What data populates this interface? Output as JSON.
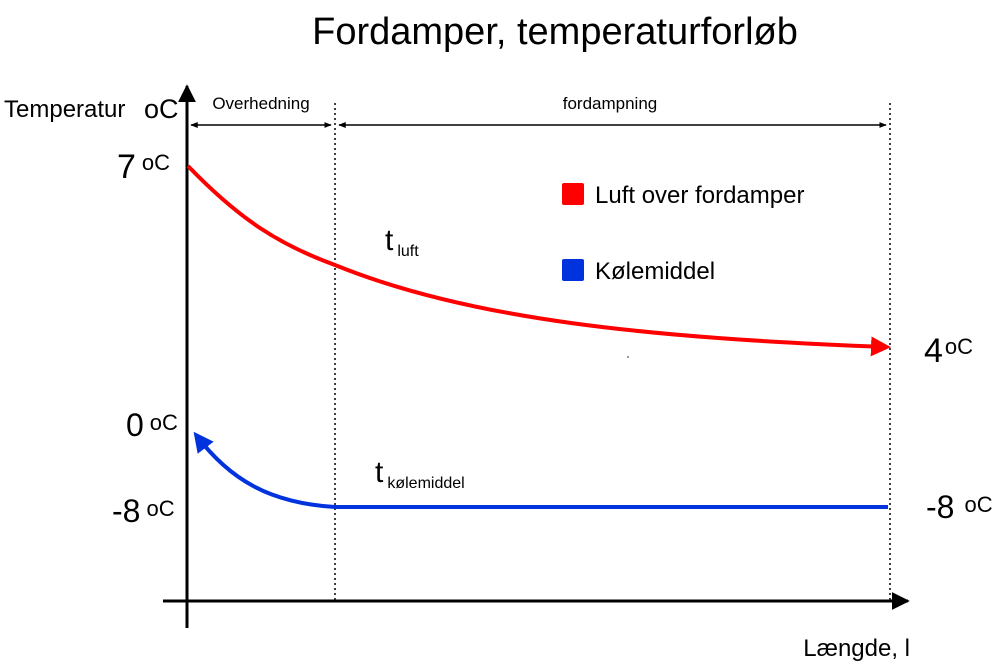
{
  "title": "Fordamper, temperaturforløb",
  "y_axis": {
    "label": "Temperatur",
    "unit": "oC"
  },
  "x_axis": {
    "label": "Længde, l"
  },
  "sections": {
    "overheating": "Overhedning",
    "evaporation": "fordampning"
  },
  "legend": [
    {
      "name": "Luft over fordamper",
      "color": "#ff0000"
    },
    {
      "name": "Kølemiddel",
      "color": "#0033dd"
    }
  ],
  "curve_labels": {
    "air": {
      "main": "t",
      "sub": "luft"
    },
    "refrigerant": {
      "main": "t",
      "sub": "kølemiddel"
    }
  },
  "temperatures": {
    "air_in": {
      "value": "7",
      "unit": "oC"
    },
    "air_out": {
      "value": "4",
      "unit": "oC"
    },
    "refrigerant_superheated": {
      "value": "0",
      "unit": "oC"
    },
    "refrigerant_evaporating_left": {
      "value": "-8",
      "unit": "oC"
    },
    "refrigerant_evaporating_right": {
      "value": "-8",
      "unit": "oC"
    }
  },
  "colors": {
    "air_curve": "#ff0000",
    "refrigerant_curve": "#0033dd",
    "axes": "#000000"
  }
}
